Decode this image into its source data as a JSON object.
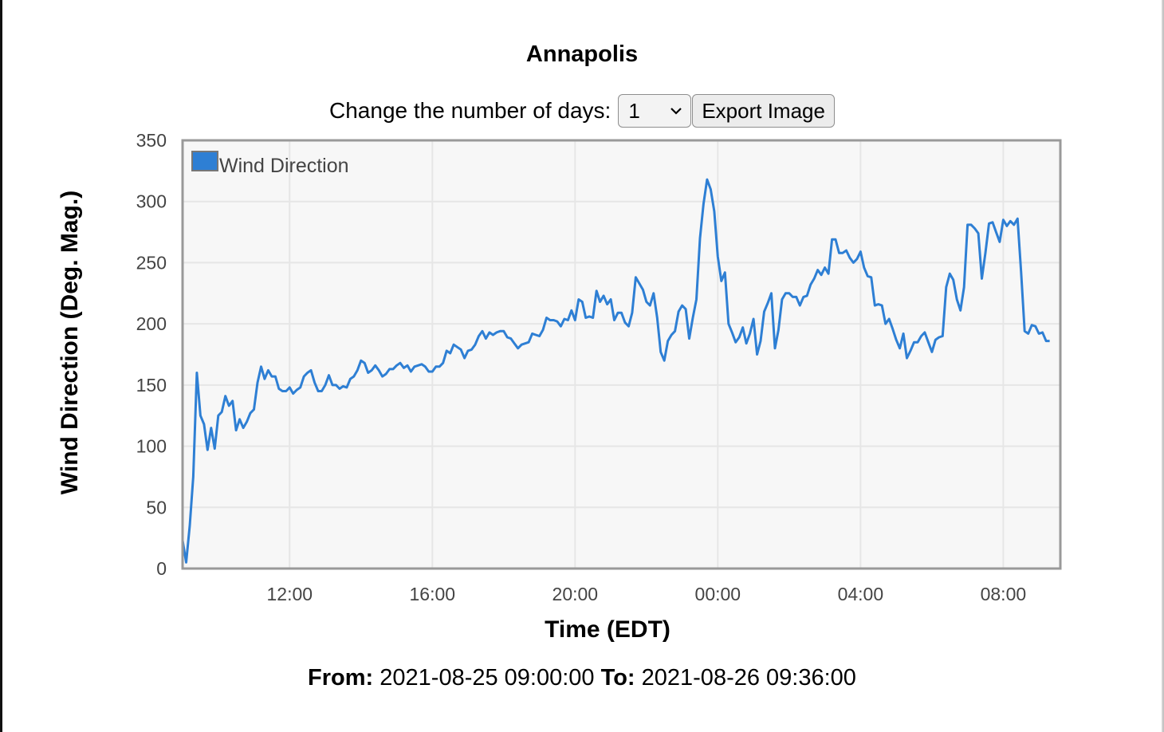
{
  "title": "Annapolis",
  "controls": {
    "days_label": "Change the number of days:",
    "days_value": "1",
    "export_label": "Export Image"
  },
  "range": {
    "from_label": "From:",
    "from_value": "2021-08-25 09:00:00",
    "to_label": "To:",
    "to_value": "2021-08-26 09:36:00"
  },
  "colors": {
    "series": "#2e7fd4",
    "plot_bg": "#f7f7f7",
    "plot_border": "#999999",
    "grid": "#e6e6e6"
  },
  "chart_data": {
    "type": "line",
    "title": "Annapolis",
    "xlabel": "Time (EDT)",
    "ylabel": "Wind Direction (Deg. Mag.)",
    "ylim": [
      0,
      350
    ],
    "yticks": [
      0,
      50,
      100,
      150,
      200,
      250,
      300,
      350
    ],
    "xlim_hours": [
      9.0,
      33.6
    ],
    "xticks": [
      {
        "hour": 12,
        "label": "12:00"
      },
      {
        "hour": 16,
        "label": "16:00"
      },
      {
        "hour": 20,
        "label": "20:00"
      },
      {
        "hour": 24,
        "label": "00:00"
      },
      {
        "hour": 28,
        "label": "04:00"
      },
      {
        "hour": 32,
        "label": "08:00"
      }
    ],
    "grid": true,
    "legend_position": "top-left",
    "series": [
      {
        "name": "Wind Direction",
        "color": "#2e7fd4",
        "points": [
          [
            9.0,
            23
          ],
          [
            9.1,
            5
          ],
          [
            9.2,
            35
          ],
          [
            9.3,
            75
          ],
          [
            9.4,
            160
          ],
          [
            9.5,
            125
          ],
          [
            9.6,
            118
          ],
          [
            9.7,
            97
          ],
          [
            9.8,
            115
          ],
          [
            9.9,
            98
          ],
          [
            10.0,
            125
          ],
          [
            10.1,
            128
          ],
          [
            10.2,
            141
          ],
          [
            10.3,
            133
          ],
          [
            10.4,
            137
          ],
          [
            10.5,
            113
          ],
          [
            10.6,
            122
          ],
          [
            10.7,
            115
          ],
          [
            10.8,
            120
          ],
          [
            10.9,
            127
          ],
          [
            11.0,
            130
          ],
          [
            11.1,
            152
          ],
          [
            11.2,
            165
          ],
          [
            11.3,
            155
          ],
          [
            11.4,
            162
          ],
          [
            11.5,
            157
          ],
          [
            11.6,
            157
          ],
          [
            11.7,
            147
          ],
          [
            11.8,
            145
          ],
          [
            11.9,
            145
          ],
          [
            12.0,
            148
          ],
          [
            12.1,
            143
          ],
          [
            12.2,
            146
          ],
          [
            12.3,
            148
          ],
          [
            12.4,
            157
          ],
          [
            12.5,
            160
          ],
          [
            12.6,
            162
          ],
          [
            12.7,
            152
          ],
          [
            12.8,
            145
          ],
          [
            12.9,
            145
          ],
          [
            13.0,
            150
          ],
          [
            13.1,
            158
          ],
          [
            13.2,
            150
          ],
          [
            13.3,
            150
          ],
          [
            13.4,
            147
          ],
          [
            13.5,
            149
          ],
          [
            13.6,
            148
          ],
          [
            13.7,
            155
          ],
          [
            13.8,
            157
          ],
          [
            13.9,
            162
          ],
          [
            14.0,
            170
          ],
          [
            14.1,
            168
          ],
          [
            14.2,
            160
          ],
          [
            14.3,
            162
          ],
          [
            14.4,
            166
          ],
          [
            14.5,
            162
          ],
          [
            14.6,
            157
          ],
          [
            14.7,
            159
          ],
          [
            14.8,
            163
          ],
          [
            14.9,
            163
          ],
          [
            15.0,
            166
          ],
          [
            15.1,
            168
          ],
          [
            15.2,
            164
          ],
          [
            15.3,
            166
          ],
          [
            15.4,
            161
          ],
          [
            15.5,
            165
          ],
          [
            15.6,
            166
          ],
          [
            15.7,
            167
          ],
          [
            15.8,
            165
          ],
          [
            15.9,
            161
          ],
          [
            16.0,
            161
          ],
          [
            16.1,
            165
          ],
          [
            16.2,
            165
          ],
          [
            16.3,
            168
          ],
          [
            16.4,
            178
          ],
          [
            16.5,
            176
          ],
          [
            16.6,
            183
          ],
          [
            16.7,
            181
          ],
          [
            16.8,
            179
          ],
          [
            16.9,
            172
          ],
          [
            17.0,
            178
          ],
          [
            17.1,
            179
          ],
          [
            17.2,
            183
          ],
          [
            17.3,
            190
          ],
          [
            17.4,
            194
          ],
          [
            17.5,
            188
          ],
          [
            17.6,
            193
          ],
          [
            17.7,
            191
          ],
          [
            17.8,
            193
          ],
          [
            17.9,
            194
          ],
          [
            18.0,
            194
          ],
          [
            18.1,
            189
          ],
          [
            18.2,
            188
          ],
          [
            18.3,
            184
          ],
          [
            18.4,
            180
          ],
          [
            18.5,
            183
          ],
          [
            18.6,
            184
          ],
          [
            18.7,
            185
          ],
          [
            18.8,
            192
          ],
          [
            18.9,
            191
          ],
          [
            19.0,
            190
          ],
          [
            19.1,
            195
          ],
          [
            19.2,
            205
          ],
          [
            19.3,
            203
          ],
          [
            19.4,
            203
          ],
          [
            19.5,
            202
          ],
          [
            19.6,
            198
          ],
          [
            19.7,
            204
          ],
          [
            19.8,
            203
          ],
          [
            19.9,
            211
          ],
          [
            20.0,
            203
          ],
          [
            20.1,
            220
          ],
          [
            20.2,
            218
          ],
          [
            20.3,
            205
          ],
          [
            20.4,
            206
          ],
          [
            20.5,
            205
          ],
          [
            20.6,
            227
          ],
          [
            20.7,
            218
          ],
          [
            20.8,
            223
          ],
          [
            20.9,
            216
          ],
          [
            21.0,
            220
          ],
          [
            21.1,
            203
          ],
          [
            21.2,
            209
          ],
          [
            21.3,
            209
          ],
          [
            21.4,
            201
          ],
          [
            21.5,
            198
          ],
          [
            21.6,
            209
          ],
          [
            21.7,
            238
          ],
          [
            21.8,
            233
          ],
          [
            21.9,
            228
          ],
          [
            22.0,
            218
          ],
          [
            22.1,
            215
          ],
          [
            22.2,
            225
          ],
          [
            22.3,
            205
          ],
          [
            22.4,
            177
          ],
          [
            22.5,
            170
          ],
          [
            22.6,
            186
          ],
          [
            22.7,
            191
          ],
          [
            22.8,
            194
          ],
          [
            22.9,
            210
          ],
          [
            23.0,
            215
          ],
          [
            23.1,
            212
          ],
          [
            23.2,
            188
          ],
          [
            23.3,
            205
          ],
          [
            23.4,
            220
          ],
          [
            23.5,
            270
          ],
          [
            23.6,
            298
          ],
          [
            23.7,
            318
          ],
          [
            23.8,
            310
          ],
          [
            23.9,
            292
          ],
          [
            24.0,
            255
          ],
          [
            24.1,
            235
          ],
          [
            24.2,
            242
          ],
          [
            24.3,
            200
          ],
          [
            24.4,
            193
          ],
          [
            24.5,
            185
          ],
          [
            24.6,
            189
          ],
          [
            24.7,
            197
          ],
          [
            24.8,
            184
          ],
          [
            24.9,
            192
          ],
          [
            25.0,
            204
          ],
          [
            25.1,
            175
          ],
          [
            25.2,
            186
          ],
          [
            25.3,
            210
          ],
          [
            25.4,
            217
          ],
          [
            25.5,
            225
          ],
          [
            25.6,
            180
          ],
          [
            25.7,
            195
          ],
          [
            25.8,
            220
          ],
          [
            25.9,
            225
          ],
          [
            26.0,
            225
          ],
          [
            26.1,
            222
          ],
          [
            26.2,
            222
          ],
          [
            26.3,
            215
          ],
          [
            26.4,
            222
          ],
          [
            26.5,
            223
          ],
          [
            26.6,
            232
          ],
          [
            26.7,
            237
          ],
          [
            26.8,
            244
          ],
          [
            26.9,
            240
          ],
          [
            27.0,
            246
          ],
          [
            27.1,
            241
          ],
          [
            27.2,
            269
          ],
          [
            27.3,
            269
          ],
          [
            27.4,
            258
          ],
          [
            27.5,
            258
          ],
          [
            27.6,
            260
          ],
          [
            27.7,
            254
          ],
          [
            27.8,
            250
          ],
          [
            27.9,
            253
          ],
          [
            28.0,
            259
          ],
          [
            28.1,
            246
          ],
          [
            28.2,
            239
          ],
          [
            28.3,
            238
          ],
          [
            28.4,
            215
          ],
          [
            28.5,
            216
          ],
          [
            28.6,
            215
          ],
          [
            28.7,
            200
          ],
          [
            28.8,
            204
          ],
          [
            28.9,
            196
          ],
          [
            29.0,
            187
          ],
          [
            29.1,
            180
          ],
          [
            29.2,
            192
          ],
          [
            29.3,
            172
          ],
          [
            29.4,
            178
          ],
          [
            29.5,
            185
          ],
          [
            29.6,
            185
          ],
          [
            29.7,
            190
          ],
          [
            29.8,
            193
          ],
          [
            29.9,
            185
          ],
          [
            30.0,
            177
          ],
          [
            30.1,
            187
          ],
          [
            30.2,
            189
          ],
          [
            30.3,
            190
          ],
          [
            30.4,
            230
          ],
          [
            30.5,
            241
          ],
          [
            30.6,
            236
          ],
          [
            30.7,
            220
          ],
          [
            30.8,
            211
          ],
          [
            30.9,
            230
          ],
          [
            31.0,
            281
          ],
          [
            31.1,
            281
          ],
          [
            31.2,
            278
          ],
          [
            31.3,
            274
          ],
          [
            31.4,
            237
          ],
          [
            31.5,
            258
          ],
          [
            31.6,
            282
          ],
          [
            31.7,
            283
          ],
          [
            31.8,
            275
          ],
          [
            31.9,
            267
          ],
          [
            32.0,
            285
          ],
          [
            32.1,
            280
          ],
          [
            32.2,
            284
          ],
          [
            32.3,
            281
          ],
          [
            32.4,
            286
          ],
          [
            32.5,
            242
          ],
          [
            32.6,
            194
          ],
          [
            32.7,
            192
          ],
          [
            32.8,
            199
          ],
          [
            32.9,
            198
          ],
          [
            33.0,
            192
          ],
          [
            33.1,
            193
          ],
          [
            33.2,
            186
          ],
          [
            33.3,
            186
          ]
        ]
      }
    ]
  }
}
